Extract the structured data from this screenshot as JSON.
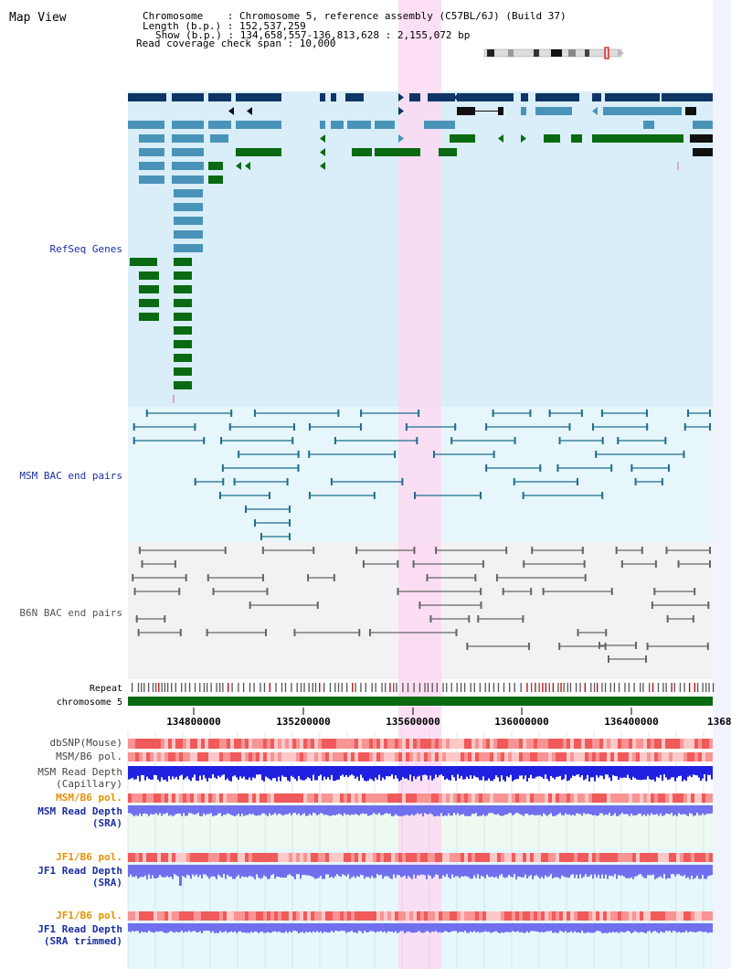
{
  "title": "Map View",
  "header": {
    "chromosome_line": "Chromosome    : Chromosome 5, reference assembly (C57BL/6J) (Build 37)",
    "length_line": "Length (b.p.) : 152,537,259",
    "show_line": "Show (b.p.) : 134,658,557-136,813,628 : 2,155,072 bp",
    "coverage_line": "Read coverage check span : 10,000"
  },
  "tracks": {
    "refseq": "RefSeq Genes",
    "msm_bac": "MSM BAC end pairs",
    "b6n_bac": "B6N BAC end pairs",
    "repeat": "Repeat",
    "chromosome": "chromosome 5",
    "dbsnp": "dbSNP(Mouse)",
    "msm_b6_pol_1": "MSM/B6 pol.",
    "msm_depth_cap_1": "MSM Read Depth",
    "msm_depth_cap_2": "(Capillary)",
    "msm_b6_pol_2": "MSM/B6 pol.",
    "msm_depth_sra_1": "MSM Read Depth",
    "msm_depth_sra_2": "(SRA)",
    "jf1_pol_1": "JF1/B6 pol.",
    "jf1_depth_sra_1": "JF1 Read Depth",
    "jf1_depth_sra_2": "(SRA)",
    "jf1_pol_2": "JF1/B6 pol.",
    "jf1_depth_trim_1": "JF1 Read Depth",
    "jf1_depth_trim_2": "(SRA trimmed)"
  },
  "axis": {
    "ticks": [
      "134800000",
      "135200000",
      "135600000",
      "136000000",
      "136400000",
      "1368"
    ]
  },
  "colors": {
    "refseq_bg": "#d9eef8",
    "msm_bg": "#e6f6fa",
    "b6n_bg": "#f2f2f4",
    "highlight": "#fbd9f2",
    "gene_dark": "#0e3566",
    "gene_mid": "#4a93b8",
    "gene_green": "#0a6a12",
    "msm_line": "#1e6e8e",
    "b6n_line": "#666666",
    "chrom_bar": "#0a6a12",
    "label_blue": "#1a2fa0",
    "label_orange": "#e69000",
    "snp_red": "#e84a4a",
    "depth_blue": "#2020e0",
    "depth_light": "#7070ee"
  }
}
